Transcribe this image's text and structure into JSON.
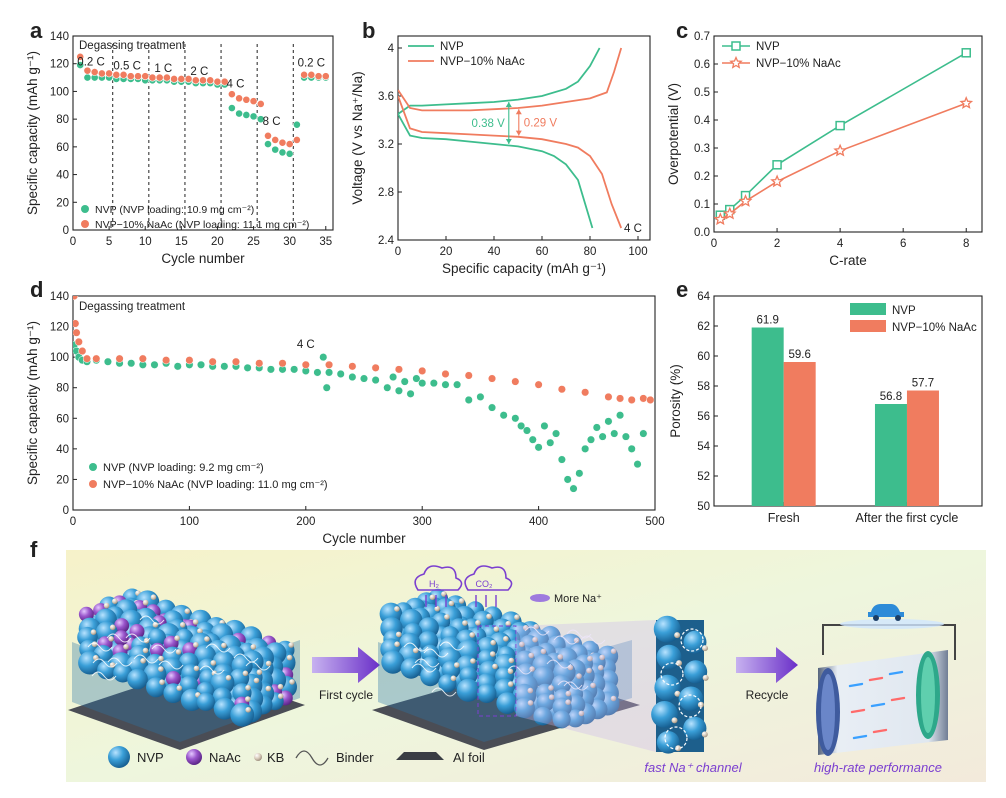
{
  "colors": {
    "nvp": "#3dbd8d",
    "nvp_dark": "#2a9a70",
    "naac": "#f07c5f",
    "naac_dark": "#d8603f",
    "sphere_nvp": "#3a9fd8",
    "sphere_naac": "#9a56cc",
    "kb": "#d9ccbc",
    "arrow": "#7b3fd0"
  },
  "chart_data": [
    {
      "panel": "a",
      "type": "scatter",
      "annotation": "Degassing treatment",
      "xlabel": "Cycle number",
      "ylabel": "Specific capacity (mAh g⁻¹)",
      "xlim": [
        0,
        36
      ],
      "ylim": [
        0,
        140
      ],
      "xticks": [
        0,
        5,
        10,
        15,
        20,
        25,
        30,
        35
      ],
      "yticks": [
        0,
        20,
        40,
        60,
        80,
        100,
        120,
        140
      ],
      "rate_labels": [
        {
          "text": "0.2 C",
          "x": 2.5,
          "y": 116
        },
        {
          "text": "0.5 C",
          "x": 7.5,
          "y": 113
        },
        {
          "text": "1 C",
          "x": 12.5,
          "y": 111
        },
        {
          "text": "2 C",
          "x": 17.5,
          "y": 109
        },
        {
          "text": "4 C",
          "x": 22.5,
          "y": 100
        },
        {
          "text": "8 C",
          "x": 27.5,
          "y": 73
        },
        {
          "text": "0.2 C",
          "x": 33,
          "y": 115
        }
      ],
      "dividers": [
        5.5,
        10.5,
        15.5,
        20.5,
        25.5,
        30.5
      ],
      "series": [
        {
          "name": "NVP (NVP loading: 10.9 mg cm⁻²)",
          "color": "#3dbd8d",
          "x": [
            1,
            2,
            3,
            4,
            5,
            6,
            7,
            8,
            9,
            10,
            11,
            12,
            13,
            14,
            15,
            16,
            17,
            18,
            19,
            20,
            21,
            22,
            23,
            24,
            25,
            26,
            27,
            28,
            29,
            30,
            31,
            32,
            33,
            34,
            35
          ],
          "y": [
            119,
            110,
            110,
            110,
            110,
            109,
            109,
            109,
            109,
            108,
            108,
            108,
            108,
            107,
            107,
            107,
            106,
            106,
            106,
            105,
            105,
            88,
            84,
            83,
            82,
            80,
            62,
            58,
            56,
            55,
            76,
            110,
            110,
            110,
            110
          ]
        },
        {
          "name": "NVP−10% NaAc (NVP loading: 11.1 mg cm⁻²)",
          "color": "#f07c5f",
          "x": [
            1,
            2,
            3,
            4,
            5,
            6,
            7,
            8,
            9,
            10,
            11,
            12,
            13,
            14,
            15,
            16,
            17,
            18,
            19,
            20,
            21,
            22,
            23,
            24,
            25,
            26,
            27,
            28,
            29,
            30,
            31,
            32,
            33,
            34,
            35
          ],
          "y": [
            125,
            115,
            114,
            113,
            113,
            112,
            112,
            111,
            111,
            111,
            110,
            110,
            110,
            109,
            109,
            109,
            108,
            108,
            108,
            107,
            107,
            98,
            95,
            94,
            93,
            91,
            68,
            65,
            63,
            62,
            65,
            112,
            112,
            111,
            111
          ]
        }
      ]
    },
    {
      "panel": "b",
      "type": "line",
      "xlabel": "Specific capacity (mAh g⁻¹)",
      "ylabel": "Voltage (V vs Na⁺/Na)",
      "xlim": [
        0,
        105
      ],
      "ylim": [
        2.4,
        4.1
      ],
      "xticks": [
        0,
        20,
        40,
        60,
        80,
        100
      ],
      "yticks": [
        2.4,
        2.8,
        3.2,
        3.6,
        4.0
      ],
      "rate_text": "4 C",
      "gap_labels": [
        {
          "text": "0.38 V",
          "color": "#3dbd8d",
          "x": 42,
          "y1": 3.2,
          "y2": 3.55
        },
        {
          "text": "0.29 V",
          "color": "#f07c5f",
          "x": 42,
          "y1": 3.27,
          "y2": 3.49
        }
      ],
      "series": [
        {
          "name": "NVP",
          "color": "#3dbd8d",
          "charge": {
            "x": [
              0,
              5,
              10,
              20,
              30,
              40,
              50,
              60,
              70,
              75,
              80,
              84
            ],
            "y": [
              3.45,
              3.52,
              3.52,
              3.53,
              3.54,
              3.55,
              3.57,
              3.6,
              3.66,
              3.72,
              3.85,
              4.0
            ]
          },
          "discharge": {
            "x": [
              0,
              5,
              10,
              20,
              30,
              40,
              50,
              60,
              65,
              70,
              75,
              78,
              81
            ],
            "y": [
              3.45,
              3.27,
              3.25,
              3.24,
              3.22,
              3.2,
              3.18,
              3.14,
              3.1,
              3.03,
              2.9,
              2.7,
              2.5
            ]
          }
        },
        {
          "name": "NVP−10% NaAc",
          "color": "#f07c5f",
          "charge": {
            "x": [
              0,
              5,
              10,
              20,
              30,
              40,
              50,
              60,
              70,
              80,
              87,
              90,
              93
            ],
            "y": [
              3.65,
              3.5,
              3.48,
              3.48,
              3.48,
              3.49,
              3.5,
              3.52,
              3.55,
              3.58,
              3.63,
              3.8,
              4.0
            ]
          },
          "discharge": {
            "x": [
              0,
              5,
              10,
              20,
              30,
              40,
              50,
              60,
              70,
              75,
              80,
              85,
              89,
              93
            ],
            "y": [
              3.6,
              3.33,
              3.3,
              3.29,
              3.28,
              3.27,
              3.26,
              3.24,
              3.2,
              3.17,
              3.1,
              2.95,
              2.7,
              2.5
            ]
          }
        }
      ]
    },
    {
      "panel": "c",
      "type": "line",
      "xlabel": "C-rate",
      "ylabel": "Overpotential (V)",
      "xlim": [
        0,
        8.5
      ],
      "ylim": [
        0,
        0.7
      ],
      "xticks": [
        0,
        2,
        4,
        6,
        8
      ],
      "yticks": [
        0,
        0.1,
        0.2,
        0.3,
        0.4,
        0.5,
        0.6,
        0.7
      ],
      "series": [
        {
          "name": "NVP",
          "color": "#3dbd8d",
          "marker": "square",
          "x": [
            0.2,
            0.5,
            1,
            2,
            4,
            8
          ],
          "y": [
            0.06,
            0.08,
            0.13,
            0.24,
            0.38,
            0.64
          ]
        },
        {
          "name": "NVP−10% NaAc",
          "color": "#f07c5f",
          "marker": "star",
          "x": [
            0.2,
            0.5,
            1,
            2,
            4,
            8
          ],
          "y": [
            0.045,
            0.065,
            0.11,
            0.18,
            0.29,
            0.46
          ]
        }
      ]
    },
    {
      "panel": "d",
      "type": "scatter",
      "annotation": "Degassing treatment",
      "rate_text": "4 C",
      "xlabel": "Cycle number",
      "ylabel": "Specific capacity (mAh g⁻¹)",
      "xlim": [
        0,
        500
      ],
      "ylim": [
        0,
        140
      ],
      "xticks": [
        0,
        100,
        200,
        300,
        400,
        500
      ],
      "yticks": [
        0,
        20,
        40,
        60,
        80,
        100,
        120,
        140
      ],
      "series": [
        {
          "name": "NVP (NVP loading: 9.2 mg cm⁻²)",
          "color": "#3dbd8d",
          "x": [
            1,
            3,
            5,
            8,
            12,
            20,
            30,
            40,
            50,
            60,
            70,
            80,
            90,
            100,
            110,
            120,
            130,
            140,
            150,
            160,
            170,
            180,
            190,
            200,
            210,
            215,
            218,
            220,
            230,
            240,
            250,
            260,
            270,
            275,
            280,
            285,
            290,
            295,
            300,
            310,
            320,
            330,
            340,
            350,
            360,
            370,
            380,
            385,
            390,
            395,
            400,
            405,
            410,
            415,
            420,
            425,
            430,
            435,
            440,
            445,
            450,
            455,
            460,
            465,
            470,
            475,
            480,
            485,
            490
          ],
          "y": [
            108,
            104,
            100,
            98,
            97,
            98,
            97,
            96,
            96,
            95,
            95,
            96,
            94,
            95,
            95,
            94,
            94,
            94,
            93,
            93,
            92,
            92,
            92,
            91,
            90,
            100,
            80,
            90,
            89,
            87,
            86,
            85,
            80,
            87,
            78,
            84,
            76,
            86,
            83,
            83,
            82,
            82,
            72,
            74,
            67,
            62,
            60,
            55,
            52,
            46,
            41,
            55,
            44,
            50,
            33,
            20,
            14,
            24,
            40,
            46,
            54,
            48,
            58,
            50,
            62,
            48,
            40,
            30,
            50
          ]
        },
        {
          "name": "NVP−10% NaAc (NVP loading: 11.0 mg cm⁻²)",
          "color": "#f07c5f",
          "x": [
            1,
            2,
            3,
            5,
            8,
            12,
            20,
            40,
            60,
            80,
            100,
            120,
            140,
            160,
            180,
            200,
            220,
            240,
            260,
            280,
            300,
            320,
            340,
            360,
            380,
            400,
            420,
            440,
            460,
            470,
            480,
            490,
            496
          ],
          "y": [
            140,
            122,
            116,
            110,
            104,
            99,
            99,
            99,
            99,
            98,
            98,
            97,
            97,
            96,
            96,
            95,
            95,
            94,
            93,
            92,
            91,
            89,
            88,
            86,
            84,
            82,
            79,
            77,
            74,
            73,
            72,
            73,
            72
          ]
        }
      ]
    },
    {
      "panel": "e",
      "type": "bar",
      "ylabel": "Porosity (%)",
      "ylim": [
        50,
        64
      ],
      "yticks": [
        50,
        52,
        54,
        56,
        58,
        60,
        62,
        64
      ],
      "categories": [
        "Fresh",
        "After the first cycle"
      ],
      "series": [
        {
          "name": "NVP",
          "color": "#3dbd8d",
          "values": [
            61.9,
            56.8
          ],
          "labels": [
            "61.9",
            "56.8"
          ]
        },
        {
          "name": "NVP−10% NaAc",
          "color": "#f07c5f",
          "values": [
            59.6,
            57.7
          ],
          "labels": [
            "59.6",
            "57.7"
          ]
        }
      ]
    }
  ],
  "panel_letters": [
    "a",
    "b",
    "c",
    "d",
    "e",
    "f"
  ],
  "schematic": {
    "gas_h2": "H₂",
    "gas_co2": "CO₂",
    "more_na": "More Na⁺",
    "first_cycle": "First cycle",
    "recycle": "Recycle",
    "fast_channel": "fast Na⁺ channel",
    "high_rate": "high-rate performance",
    "legend": {
      "nvp": "NVP",
      "naac": "NaAc",
      "kb": "KB",
      "binder": "Binder",
      "al_foil": "Al foil"
    }
  }
}
